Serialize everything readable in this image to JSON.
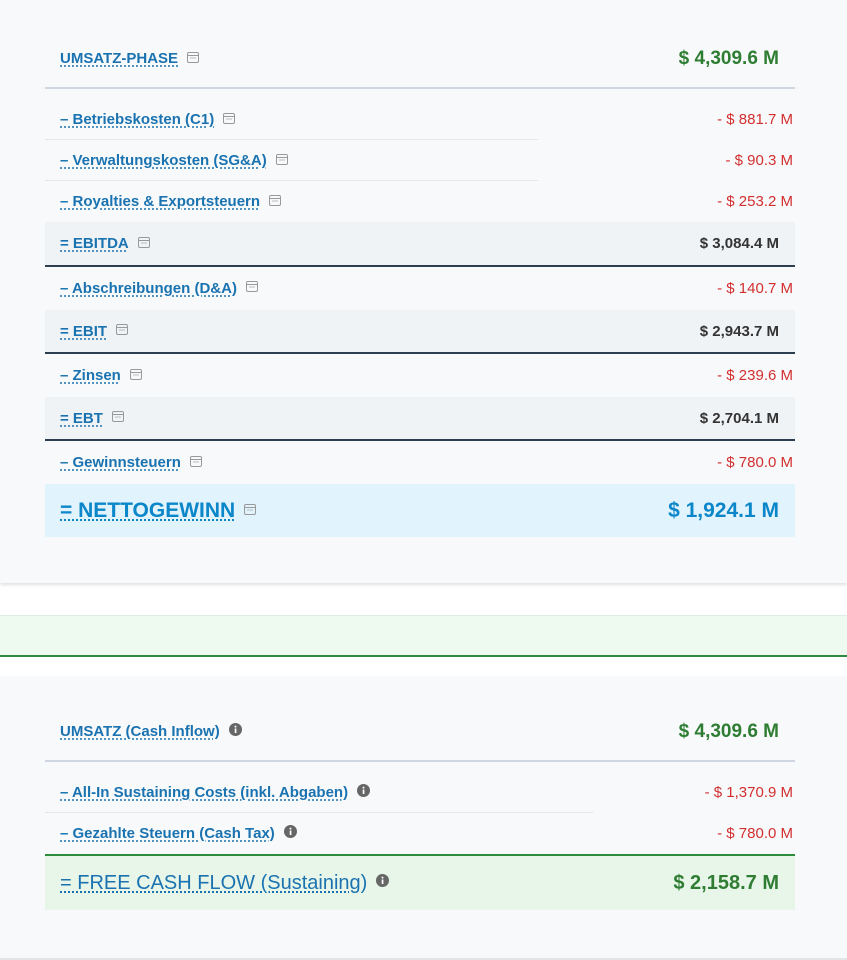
{
  "sections": [
    {
      "header": {
        "label": "UMSATZ-PHASE",
        "value": "$ 4,309.6 M"
      },
      "rows": [
        {
          "label": "– Betriebskosten (C1)",
          "value": "- $ 881.7 M"
        },
        {
          "label": "– Verwaltungskosten (SG&A)",
          "value": "- $ 90.3 M"
        },
        {
          "label": "– Royalties & Exportsteuern",
          "value": "- $ 253.2 M"
        },
        {
          "label": "= EBITDA",
          "value": "$ 3,084.4 M"
        },
        {
          "label": "– Abschreibungen (D&A)",
          "value": "- $ 140.7 M"
        },
        {
          "label": "= EBIT",
          "value": "$ 2,943.7 M"
        },
        {
          "label": "– Zinsen",
          "value": "- $ 239.6 M"
        },
        {
          "label": "= EBT",
          "value": "$ 2,704.1 M"
        },
        {
          "label": "– Gewinnsteuern",
          "value": "- $ 780.0 M"
        },
        {
          "label": "= NETTOGEWINN",
          "value": "$ 1,924.1 M"
        }
      ]
    },
    {
      "header": {
        "label": "UMSATZ (Cash Inflow)",
        "value": "$ 4,309.6 M"
      },
      "rows": [
        {
          "label": "– All-In Sustaining Costs (inkl. Abgaben)",
          "value": "- $ 1,370.9 M"
        },
        {
          "label": "– Gezahlte Steuern (Cash Tax)",
          "value": "- $ 780.0 M"
        },
        {
          "label": "= FREE CASH FLOW (Sustaining)",
          "value": "$ 2,158.7 M"
        }
      ]
    }
  ]
}
